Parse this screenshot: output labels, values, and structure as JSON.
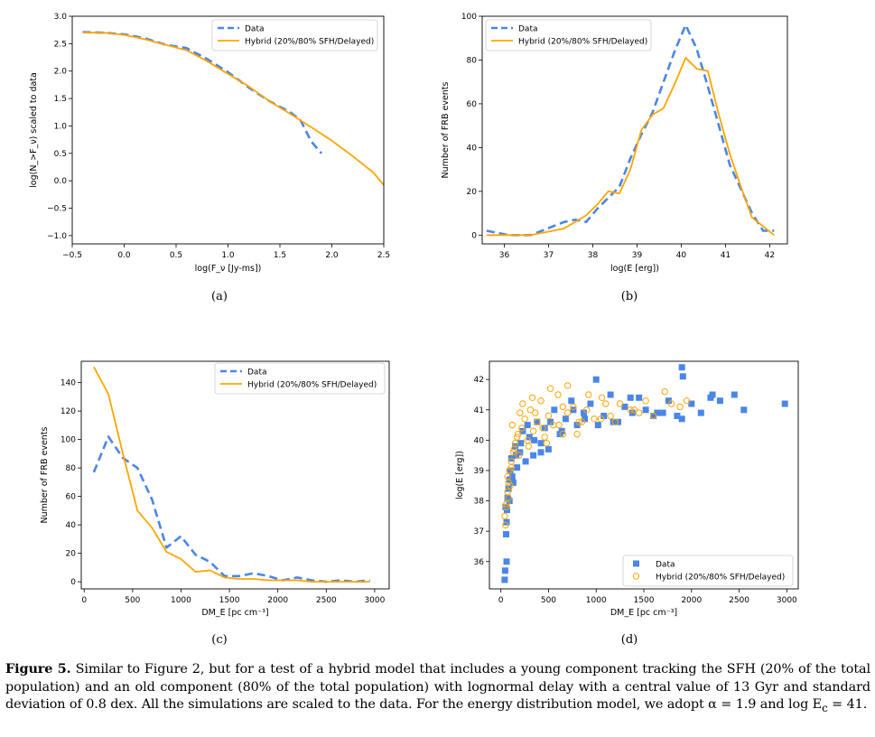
{
  "colors": {
    "data": "#4a86e8",
    "hybrid": "#ffa500",
    "axis": "#000000"
  },
  "caption": {
    "label": "Figure 5.",
    "text": " Similar to Figure 2, but for a test of a hybrid model that includes a young component tracking the SFH (20% of the total population) and an old component (80% of the total population) with lognormal delay with a central value of 13 Gyr and standard deviation of 0.8 dex. All the simulations are scaled to the data. For the energy distribution model, we adopt α = 1.9 and log E",
    "sub": "c",
    "tail": " = 41."
  },
  "panels": {
    "a": "(a)",
    "b": "(b)",
    "c": "(c)",
    "d": "(d)"
  },
  "chart_data": [
    {
      "id": "a",
      "type": "line",
      "xlabel": "log(F_ν [Jy-ms])",
      "ylabel": "log(N_>F_ν) scaled to data",
      "xlim": [
        -0.5,
        2.5
      ],
      "ylim": [
        -1.15,
        3.0
      ],
      "xticks": [
        -0.5,
        0.0,
        0.5,
        1.0,
        1.5,
        2.0,
        2.5
      ],
      "xticklabels": [
        "−0.5",
        "0.0",
        "0.5",
        "1.0",
        "1.5",
        "2.0",
        "2.5"
      ],
      "yticks": [
        -1.0,
        -0.5,
        0.0,
        0.5,
        1.0,
        1.5,
        2.0,
        2.5,
        3.0
      ],
      "yticklabels": [
        "−1.0",
        "−0.5",
        "0.0",
        "0.5",
        "1.0",
        "1.5",
        "2.0",
        "2.5",
        "3.0"
      ],
      "legend": "top-right",
      "series": [
        {
          "name": "Data",
          "style": "dashed",
          "x": [
            -0.4,
            -0.2,
            0.0,
            0.2,
            0.4,
            0.6,
            0.8,
            1.0,
            1.2,
            1.4,
            1.6,
            1.7,
            1.8,
            1.9
          ],
          "y": [
            2.71,
            2.7,
            2.67,
            2.6,
            2.48,
            2.42,
            2.22,
            1.98,
            1.7,
            1.45,
            1.25,
            1.1,
            0.72,
            0.5
          ]
        },
        {
          "name": "Hybrid (20%/80% SFH/Delayed)",
          "style": "solid",
          "x": [
            -0.4,
            -0.2,
            0.0,
            0.2,
            0.4,
            0.6,
            0.8,
            1.0,
            1.2,
            1.4,
            1.6,
            1.8,
            2.0,
            2.2,
            2.4,
            2.5
          ],
          "y": [
            2.7,
            2.7,
            2.66,
            2.58,
            2.48,
            2.38,
            2.18,
            1.95,
            1.72,
            1.45,
            1.22,
            0.98,
            0.73,
            0.45,
            0.15,
            -0.08
          ]
        }
      ]
    },
    {
      "id": "b",
      "type": "line",
      "xlabel": "log(E [erg])",
      "ylabel": "Number of FRB events",
      "xlim": [
        35.5,
        42.4
      ],
      "ylim": [
        -4,
        100
      ],
      "xticks": [
        36,
        37,
        38,
        39,
        40,
        41,
        42
      ],
      "xticklabels": [
        "36",
        "37",
        "38",
        "39",
        "40",
        "41",
        "42"
      ],
      "yticks": [
        0,
        20,
        40,
        60,
        80,
        100
      ],
      "yticklabels": [
        "0",
        "20",
        "40",
        "60",
        "80",
        "100"
      ],
      "legend": "top-left",
      "series": [
        {
          "name": "Data",
          "style": "dashed",
          "x": [
            35.6,
            35.85,
            36.1,
            36.35,
            36.6,
            36.85,
            37.1,
            37.35,
            37.6,
            37.85,
            38.1,
            38.35,
            38.6,
            38.85,
            39.1,
            39.35,
            39.6,
            39.85,
            40.1,
            40.35,
            40.6,
            40.85,
            41.1,
            41.35,
            41.6,
            41.85,
            42.1
          ],
          "y": [
            2,
            1,
            0,
            0,
            0,
            2,
            4,
            6,
            7,
            6,
            12,
            17,
            22,
            35,
            46,
            56,
            70,
            84,
            96,
            85,
            68,
            50,
            32,
            21,
            10,
            2,
            2
          ]
        },
        {
          "name": "Hybrid (20%/80% SFH/Delayed)",
          "style": "solid",
          "x": [
            35.6,
            35.85,
            36.1,
            36.35,
            36.6,
            36.85,
            37.1,
            37.35,
            37.6,
            37.85,
            38.1,
            38.35,
            38.6,
            38.85,
            39.1,
            39.35,
            39.6,
            39.85,
            40.1,
            40.35,
            40.6,
            40.85,
            41.1,
            41.35,
            41.6,
            41.85,
            42.1
          ],
          "y": [
            0,
            0,
            0,
            0,
            0,
            1,
            2,
            3,
            6,
            9,
            14,
            20,
            19,
            30,
            48,
            55,
            58,
            69,
            81,
            76,
            75,
            55,
            37,
            22,
            8,
            4,
            0
          ]
        }
      ]
    },
    {
      "id": "c",
      "type": "line",
      "xlabel": "DM_E [pc cm⁻³]",
      "ylabel": "Number of FRB events",
      "xlim": [
        -30,
        3150
      ],
      "ylim": [
        -5,
        155
      ],
      "xticks": [
        0,
        500,
        1000,
        1500,
        2000,
        2500,
        3000
      ],
      "xticklabels": [
        "0",
        "500",
        "1000",
        "1500",
        "2000",
        "2500",
        "3000"
      ],
      "yticks": [
        0,
        20,
        40,
        60,
        80,
        100,
        120,
        140
      ],
      "yticklabels": [
        "0",
        "20",
        "40",
        "60",
        "80",
        "100",
        "120",
        "140"
      ],
      "legend": "top-right",
      "series": [
        {
          "name": "Data",
          "style": "dashed",
          "x": [
            100,
            250,
            400,
            550,
            700,
            850,
            1000,
            1150,
            1300,
            1450,
            1600,
            1750,
            1900,
            2050,
            2200,
            2350,
            2500,
            2650,
            2800,
            2950
          ],
          "y": [
            77,
            102,
            87,
            80,
            58,
            24,
            32,
            19,
            14,
            4,
            4,
            6,
            4,
            1,
            3,
            1,
            0,
            1,
            0,
            1
          ]
        },
        {
          "name": "Hybrid (20%/80% SFH/Delayed)",
          "style": "solid",
          "x": [
            100,
            250,
            400,
            550,
            700,
            850,
            1000,
            1150,
            1300,
            1450,
            1600,
            1750,
            1900,
            2050,
            2200,
            2350,
            2500,
            2650,
            2800,
            2950
          ],
          "y": [
            151,
            132,
            90,
            50,
            38,
            21,
            16,
            7,
            8,
            3,
            2,
            2,
            1,
            1,
            1,
            0,
            0,
            0,
            0,
            0
          ]
        }
      ]
    },
    {
      "id": "d",
      "type": "scatter",
      "xlabel": "DM_E [pc cm⁻³]",
      "ylabel": "log(E [erg])",
      "xlim": [
        -120,
        3120
      ],
      "ylim": [
        35.1,
        42.6
      ],
      "xticks": [
        0,
        500,
        1000,
        1500,
        2000,
        2500,
        3000
      ],
      "xticklabels": [
        "0",
        "500",
        "1000",
        "1500",
        "2000",
        "2500",
        "3000"
      ],
      "yticks": [
        36,
        37,
        38,
        39,
        40,
        41,
        42
      ],
      "yticklabels": [
        "36",
        "37",
        "38",
        "39",
        "40",
        "41",
        "42"
      ],
      "legend": "bottom-right",
      "series": [
        {
          "name": "Data",
          "marker": "square",
          "x": [
            40,
            45,
            50,
            55,
            60,
            65,
            70,
            80,
            90,
            100,
            110,
            130,
            150,
            170,
            200,
            230,
            260,
            300,
            340,
            380,
            420,
            460,
            500,
            560,
            620,
            680,
            740,
            800,
            870,
            940,
            1000,
            1080,
            1150,
            1230,
            1300,
            1380,
            1450,
            1520,
            1600,
            1700,
            1760,
            1850,
            1900,
            1910,
            2000,
            2100,
            2200,
            2300,
            2550,
            2980,
            60,
            90,
            120,
            160,
            210,
            280,
            350,
            420,
            520,
            640,
            760,
            880,
            1020,
            1180,
            1360,
            1640,
            1900,
            2220,
            2450
          ],
          "y": [
            35.4,
            35.7,
            37.8,
            36.9,
            37.3,
            37.7,
            38.1,
            38.4,
            38.7,
            39.0,
            39.4,
            38.6,
            39.8,
            39.1,
            39.6,
            40.3,
            39.3,
            40.1,
            39.5,
            40.6,
            39.9,
            40.4,
            39.7,
            41.0,
            40.2,
            40.7,
            41.3,
            40.5,
            40.9,
            41.2,
            42.0,
            40.8,
            41.5,
            40.6,
            41.1,
            40.9,
            41.4,
            41.0,
            40.8,
            40.9,
            41.3,
            40.8,
            42.4,
            42.1,
            41.2,
            40.9,
            41.4,
            41.3,
            41.0,
            41.2,
            36.0,
            38.0,
            38.8,
            39.5,
            39.9,
            40.5,
            40.0,
            39.6,
            40.6,
            40.3,
            41.0,
            40.7,
            40.5,
            40.6,
            41.4,
            40.9,
            40.7,
            41.5,
            41.5
          ]
        },
        {
          "name": "Hybrid (20%/80% SFH/Delayed)",
          "marker": "circle-open",
          "x": [
            40,
            50,
            60,
            70,
            80,
            90,
            100,
            110,
            130,
            150,
            170,
            190,
            220,
            250,
            280,
            310,
            340,
            380,
            420,
            460,
            500,
            550,
            600,
            650,
            700,
            760,
            820,
            900,
            980,
            1060,
            1150,
            1250,
            1360,
            1450,
            1520,
            1600,
            1720,
            1790,
            1880,
            1950,
            60,
            80,
            110,
            140,
            180,
            230,
            290,
            360,
            440,
            520,
            610,
            700,
            800,
            920,
            1050,
            1200,
            1400,
            70,
            120,
            200,
            330,
            480,
            650,
            850,
            1100
          ],
          "y": [
            37.5,
            37.2,
            37.9,
            38.3,
            38.6,
            39.0,
            38.5,
            39.3,
            39.6,
            39.9,
            40.1,
            39.5,
            40.4,
            40.7,
            40.0,
            41.0,
            40.3,
            40.6,
            41.3,
            40.1,
            40.8,
            40.5,
            41.5,
            40.2,
            40.9,
            41.1,
            40.6,
            41.0,
            40.7,
            41.4,
            40.8,
            41.2,
            41.0,
            40.9,
            41.3,
            40.8,
            41.6,
            41.2,
            41.1,
            41.3,
            37.8,
            38.1,
            39.1,
            39.7,
            40.2,
            41.2,
            39.8,
            40.9,
            40.4,
            41.7,
            40.5,
            41.8,
            40.2,
            41.5,
            40.7,
            40.6,
            41.0,
            38.8,
            40.5,
            40.9,
            41.4,
            39.9,
            41.1,
            40.6,
            41.2
          ]
        }
      ]
    }
  ]
}
